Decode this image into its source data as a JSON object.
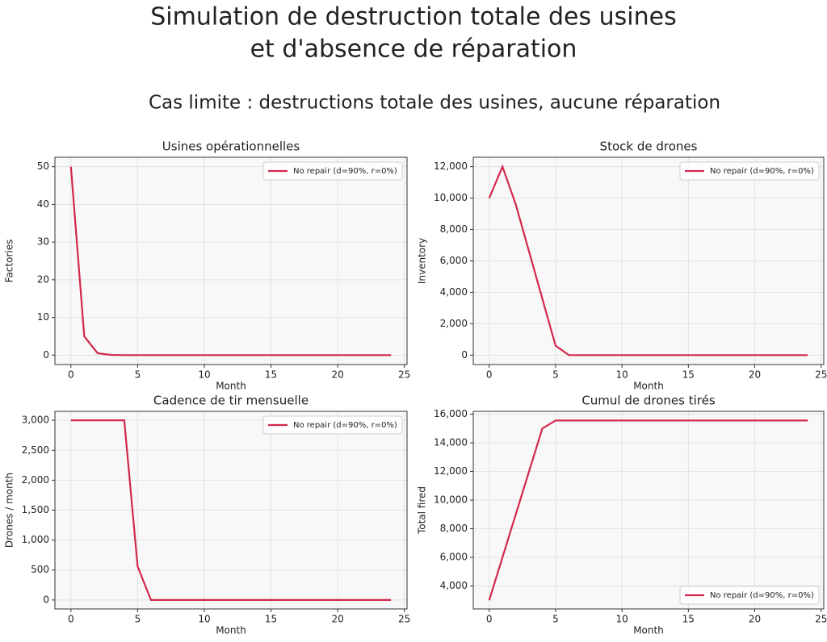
{
  "title": [
    "Simulation de destruction totale des usines",
    "et d'absence de réparation"
  ],
  "subtitle": "Cas limite : destructions totale des usines, aucune réparation",
  "chart_data": [
    {
      "type": "line",
      "title": "Usines opérationnelles",
      "x_label": "Month",
      "y_label": "Factories",
      "x": [
        0,
        1,
        2,
        3,
        4,
        5,
        6,
        7,
        8,
        9,
        10,
        11,
        12,
        13,
        14,
        15,
        16,
        17,
        18,
        19,
        20,
        21,
        22,
        23,
        24
      ],
      "series": [
        {
          "name": "No repair (d=90%, r=0%)",
          "color": "#d2284c",
          "values": [
            50,
            5,
            0.5,
            0.05,
            0,
            0,
            0,
            0,
            0,
            0,
            0,
            0,
            0,
            0,
            0,
            0,
            0,
            0,
            0,
            0,
            0,
            0,
            0,
            0,
            0
          ]
        }
      ],
      "xlim": [
        -1.2,
        25.2
      ],
      "xticks": [
        0,
        5,
        10,
        15,
        20,
        25
      ],
      "ylim": [
        -2.5,
        52.5
      ],
      "yticks": [
        0,
        10,
        20,
        30,
        40,
        50
      ],
      "grid": true,
      "legend": "upper right"
    },
    {
      "type": "line",
      "title": "Stock de drones",
      "x_label": "Month",
      "y_label": "Inventory",
      "x": [
        0,
        1,
        2,
        3,
        4,
        5,
        6,
        7,
        8,
        9,
        10,
        11,
        12,
        13,
        14,
        15,
        16,
        17,
        18,
        19,
        20,
        21,
        22,
        23,
        24
      ],
      "series": [
        {
          "name": "No repair (d=90%, r=0%)",
          "color": "#d2284c",
          "values": [
            10000,
            12000,
            9600,
            6600,
            3600,
            600,
            0,
            0,
            0,
            0,
            0,
            0,
            0,
            0,
            0,
            0,
            0,
            0,
            0,
            0,
            0,
            0,
            0,
            0,
            0
          ]
        }
      ],
      "xlim": [
        -1.2,
        25.2
      ],
      "xticks": [
        0,
        5,
        10,
        15,
        20,
        25
      ],
      "ylim": [
        -600,
        12600
      ],
      "yticks": [
        0,
        {
          "value": 2000,
          "label": "2,000"
        },
        {
          "value": 4000,
          "label": "4,000"
        },
        {
          "value": 6000,
          "label": "6,000"
        },
        {
          "value": 8000,
          "label": "8,000"
        },
        {
          "value": 10000,
          "label": "10,000"
        },
        {
          "value": 12000,
          "label": "12,000"
        }
      ],
      "grid": true,
      "legend": "upper right"
    },
    {
      "type": "line",
      "title": "Cadence de tir mensuelle",
      "x_label": "Month",
      "y_label": "Drones / month",
      "x": [
        0,
        1,
        2,
        3,
        4,
        5,
        6,
        7,
        8,
        9,
        10,
        11,
        12,
        13,
        14,
        15,
        16,
        17,
        18,
        19,
        20,
        21,
        22,
        23,
        24
      ],
      "series": [
        {
          "name": "No repair (d=90%, r=0%)",
          "color": "#d2284c",
          "values": [
            3000,
            3000,
            3000,
            3000,
            3000,
            560,
            0,
            0,
            0,
            0,
            0,
            0,
            0,
            0,
            0,
            0,
            0,
            0,
            0,
            0,
            0,
            0,
            0,
            0,
            0
          ]
        }
      ],
      "xlim": [
        -1.2,
        25.2
      ],
      "xticks": [
        0,
        5,
        10,
        15,
        20,
        25
      ],
      "ylim": [
        -150,
        3150
      ],
      "yticks": [
        0,
        500,
        {
          "value": 1000,
          "label": "1,000"
        },
        {
          "value": 1500,
          "label": "1,500"
        },
        {
          "value": 2000,
          "label": "2,000"
        },
        {
          "value": 2500,
          "label": "2,500"
        },
        {
          "value": 3000,
          "label": "3,000"
        }
      ],
      "grid": true,
      "legend": "upper right"
    },
    {
      "type": "line",
      "title": "Cumul de drones tirés",
      "x_label": "Month",
      "y_label": "Total fired",
      "x": [
        0,
        1,
        2,
        3,
        4,
        5,
        6,
        7,
        8,
        9,
        10,
        11,
        12,
        13,
        14,
        15,
        16,
        17,
        18,
        19,
        20,
        21,
        22,
        23,
        24
      ],
      "series": [
        {
          "name": "No repair (d=90%, r=0%)",
          "color": "#d2284c",
          "values": [
            3000,
            6000,
            9000,
            12000,
            15000,
            15560,
            15560,
            15560,
            15560,
            15560,
            15560,
            15560,
            15560,
            15560,
            15560,
            15560,
            15560,
            15560,
            15560,
            15560,
            15560,
            15560,
            15560,
            15560,
            15560
          ]
        }
      ],
      "xlim": [
        -1.2,
        25.2
      ],
      "xticks": [
        0,
        5,
        10,
        15,
        20,
        25
      ],
      "ylim": [
        2400,
        16200
      ],
      "yticks": [
        {
          "value": 4000,
          "label": "4,000"
        },
        {
          "value": 6000,
          "label": "6,000"
        },
        {
          "value": 8000,
          "label": "8,000"
        },
        {
          "value": 10000,
          "label": "10,000"
        },
        {
          "value": 12000,
          "label": "12,000"
        },
        {
          "value": 14000,
          "label": "14,000"
        },
        {
          "value": 16000,
          "label": "16,000"
        }
      ],
      "grid": true,
      "legend": "lower right"
    }
  ]
}
